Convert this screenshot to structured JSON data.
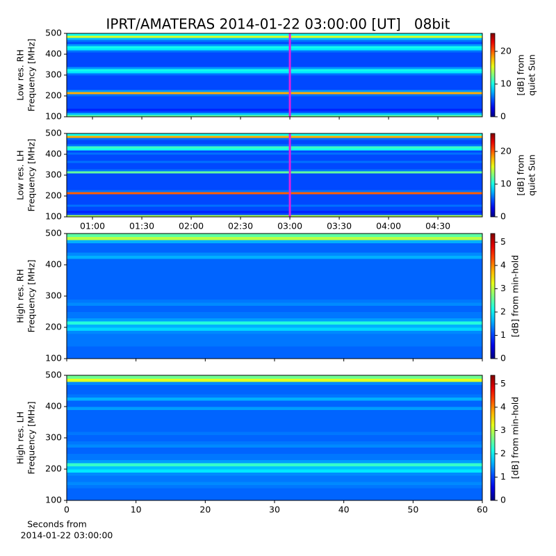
{
  "title": "IPRT/AMATERAS 2014-01-22 03:00:00 [UT]   08bit",
  "chart_data": [
    {
      "type": "heatmap",
      "ylabel": [
        "Low res. RH",
        "Frequency [MHz]"
      ],
      "xlim": [
        0.739,
        4.95
      ],
      "xticks": [
        {
          "value": 1,
          "label": "01:00"
        },
        {
          "value": 1.5,
          "label": "01:30"
        },
        {
          "value": 2,
          "label": "02:00"
        },
        {
          "value": 2.5,
          "label": "02:30"
        },
        {
          "value": 3,
          "label": "03:00"
        },
        {
          "value": 3.5,
          "label": "03:30"
        },
        {
          "value": 4,
          "label": "04:00"
        },
        {
          "value": 4.5,
          "label": "04:30"
        }
      ],
      "show_xtick_labels": false,
      "ylim": [
        100,
        500
      ],
      "yticks": [
        100,
        200,
        300,
        400,
        500
      ],
      "y": [
        105,
        115,
        125,
        135,
        145,
        155,
        165,
        175,
        185,
        195,
        205,
        215,
        225,
        235,
        245,
        255,
        265,
        275,
        285,
        295,
        305,
        315,
        325,
        335,
        345,
        355,
        365,
        375,
        385,
        395,
        405,
        415,
        425,
        435,
        445,
        455,
        465,
        475,
        485,
        495
      ],
      "values": [
        12,
        8,
        5,
        4,
        5,
        5,
        5,
        5,
        5,
        5,
        6,
        18,
        7,
        5,
        5,
        5,
        5,
        5,
        5,
        5,
        6,
        9,
        10,
        7,
        5,
        5,
        5,
        5,
        5,
        5,
        5,
        6,
        9,
        10,
        7,
        5,
        6,
        8,
        15,
        10
      ],
      "marker_x": 3,
      "marker_color": "#e020e0",
      "clim": [
        0,
        25.5
      ],
      "cticks": [
        0,
        10,
        20
      ],
      "clabel": [
        "[dB] from",
        "quiet Sun"
      ]
    },
    {
      "type": "heatmap",
      "ylabel": [
        "Low res. LH",
        "Frequency [MHz]"
      ],
      "xlim": [
        0.739,
        4.95
      ],
      "xticks": [
        {
          "value": 1,
          "label": "01:00"
        },
        {
          "value": 1.5,
          "label": "01:30"
        },
        {
          "value": 2,
          "label": "02:00"
        },
        {
          "value": 2.5,
          "label": "02:30"
        },
        {
          "value": 3,
          "label": "03:00"
        },
        {
          "value": 3.5,
          "label": "03:30"
        },
        {
          "value": 4,
          "label": "04:00"
        },
        {
          "value": 4.5,
          "label": "04:30"
        }
      ],
      "show_xtick_labels": true,
      "ylim": [
        100,
        500
      ],
      "yticks": [
        100,
        200,
        300,
        400,
        500
      ],
      "y": [
        105,
        115,
        125,
        135,
        145,
        155,
        165,
        175,
        185,
        195,
        205,
        215,
        225,
        235,
        245,
        255,
        265,
        275,
        285,
        295,
        305,
        315,
        325,
        335,
        345,
        355,
        365,
        375,
        385,
        395,
        405,
        415,
        425,
        435,
        445,
        455,
        465,
        475,
        485,
        495
      ],
      "values": [
        14,
        5,
        4,
        5,
        5,
        6,
        5,
        5,
        5,
        5,
        5,
        20,
        6,
        5,
        5,
        5,
        5,
        5,
        5,
        5,
        5,
        12,
        6,
        5,
        5,
        5,
        6,
        5,
        5,
        5,
        6,
        5,
        10,
        11,
        6,
        5,
        5,
        6,
        18,
        10
      ],
      "marker_x": 3,
      "marker_color": "#e020e0",
      "clim": [
        0,
        25.5
      ],
      "cticks": [
        0,
        10,
        20
      ],
      "clabel": [
        "[dB] from",
        "quiet Sun"
      ]
    },
    {
      "type": "heatmap",
      "ylabel": [
        "High res. RH",
        "Frequency [MHz]"
      ],
      "xlim": [
        0,
        60
      ],
      "xticks": [
        0,
        10,
        20,
        30,
        40,
        50,
        60
      ],
      "show_xtick_labels": false,
      "ylim": [
        100,
        500
      ],
      "yticks": [
        100,
        200,
        300,
        400,
        500
      ],
      "y": [
        105,
        115,
        125,
        135,
        145,
        155,
        165,
        175,
        185,
        195,
        205,
        215,
        225,
        235,
        245,
        255,
        265,
        275,
        285,
        295,
        305,
        315,
        325,
        335,
        345,
        355,
        365,
        375,
        385,
        395,
        405,
        415,
        425,
        435,
        445,
        455,
        465,
        475,
        485,
        495
      ],
      "values": [
        1.2,
        1.2,
        1.2,
        1.2,
        1.3,
        1.3,
        1.3,
        1.3,
        1.4,
        1.8,
        1.6,
        2.2,
        1.5,
        1.3,
        1.3,
        1.2,
        1.2,
        1.4,
        1.3,
        1.2,
        1.2,
        1.2,
        1.2,
        1.2,
        1.2,
        1.2,
        1.2,
        1.2,
        1.2,
        1.2,
        1.2,
        1.2,
        1.6,
        1.4,
        1.2,
        1.2,
        1.2,
        1.6,
        3,
        2.5
      ],
      "clim": [
        0,
        5.37
      ],
      "cticks": [
        0,
        1,
        2,
        3,
        4,
        5
      ],
      "clabel": [
        "[dB] from min-hold"
      ]
    },
    {
      "type": "heatmap",
      "ylabel": [
        "High res. LH",
        "Frequency [MHz]"
      ],
      "xlim": [
        0,
        60
      ],
      "xticks": [
        0,
        10,
        20,
        30,
        40,
        50,
        60
      ],
      "show_xtick_labels": true,
      "xlabel": [
        "Seconds from",
        "2014-01-22 03:00:00"
      ],
      "ylim": [
        100,
        500
      ],
      "yticks": [
        100,
        200,
        300,
        400,
        500
      ],
      "y": [
        105,
        115,
        125,
        135,
        145,
        155,
        165,
        175,
        185,
        195,
        205,
        215,
        225,
        235,
        245,
        255,
        265,
        275,
        285,
        295,
        305,
        315,
        325,
        335,
        345,
        355,
        365,
        375,
        385,
        395,
        405,
        415,
        425,
        435,
        445,
        455,
        465,
        475,
        485,
        495
      ],
      "values": [
        1.2,
        1.2,
        1.2,
        1.2,
        1.3,
        1.4,
        1.3,
        1.3,
        1.4,
        1.9,
        1.7,
        2.3,
        1.5,
        1.3,
        1.3,
        1.2,
        1.2,
        1.4,
        1.3,
        1.2,
        1.2,
        1.3,
        1.2,
        1.2,
        1.2,
        1.2,
        1.2,
        1.2,
        1.2,
        1.5,
        1.2,
        1.2,
        1.6,
        1.3,
        1.2,
        1.2,
        1.2,
        1.4,
        3.2,
        2.6
      ],
      "clim": [
        0,
        5.37
      ],
      "cticks": [
        0,
        1,
        2,
        3,
        4,
        5
      ],
      "clabel": [
        "[dB] from min-hold"
      ]
    }
  ]
}
